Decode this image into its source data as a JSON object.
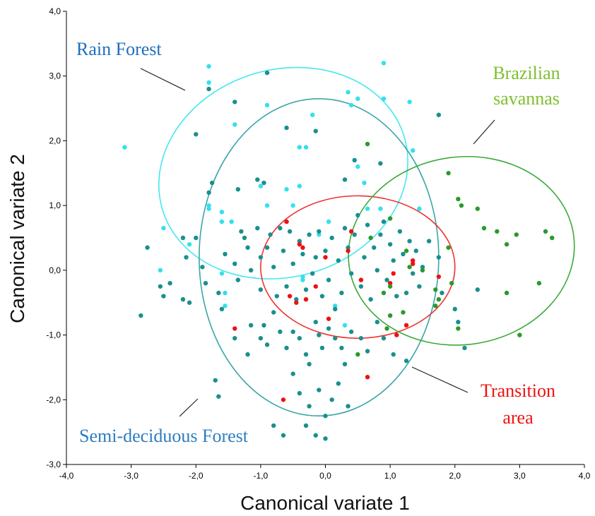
{
  "chart_data": {
    "type": "scatter",
    "xlabel": "Canonical variate 1",
    "ylabel": "Canonical variate 2",
    "xlim": [
      -4.0,
      4.0
    ],
    "ylim": [
      -3.0,
      4.0
    ],
    "xticks": [
      "-4,0",
      "-3,0",
      "-2,0",
      "-1,0",
      "0,0",
      "1,0",
      "2,0",
      "3,0",
      "4,0"
    ],
    "yticks": [
      "4,0",
      "3,0",
      "2,0",
      "1,0",
      "0,0",
      "-1,0",
      "-2,0",
      "-3,0"
    ],
    "grid": false,
    "colors": {
      "rain_forest": "#33e0ee",
      "semi_deciduous": "#1a8f8f",
      "transition": "#ee1111",
      "savannas": "#2a9a2a"
    },
    "ellipses": [
      {
        "group": "rain_forest",
        "cx": -0.65,
        "cy": 1.5,
        "rx": 1.95,
        "ry": 1.6,
        "angle_deg": -17,
        "color": "#44e8f0"
      },
      {
        "group": "semi_deciduous",
        "cx": -0.1,
        "cy": 0.2,
        "rx": 1.85,
        "ry": 2.45,
        "angle_deg": 0,
        "color": "#3aa6a6"
      },
      {
        "group": "transition",
        "cx": 0.5,
        "cy": 0.05,
        "rx": 1.5,
        "ry": 1.1,
        "angle_deg": 0,
        "color": "#ee3333"
      },
      {
        "group": "savannas",
        "cx": 2.1,
        "cy": 0.3,
        "rx": 1.75,
        "ry": 1.45,
        "angle_deg": -8,
        "color": "#3aaa3a"
      }
    ],
    "series": [
      {
        "name": "Rain Forest",
        "color_key": "rain_forest",
        "points": [
          [
            -3.1,
            1.9
          ],
          [
            -1.8,
            3.15
          ],
          [
            -1.8,
            2.9
          ],
          [
            -0.9,
            2.55
          ],
          [
            -1.4,
            2.25
          ],
          [
            -0.4,
            1.9
          ],
          [
            -0.2,
            2.4
          ],
          [
            0.35,
            2.75
          ],
          [
            0.9,
            3.2
          ],
          [
            0.5,
            2.65
          ],
          [
            0.5,
            1.6
          ],
          [
            0.9,
            2.65
          ],
          [
            1.3,
            2.6
          ],
          [
            1.35,
            1.85
          ],
          [
            -1.8,
            1.0
          ],
          [
            -1.8,
            0.95
          ],
          [
            -1.6,
            0.75
          ],
          [
            -1.0,
            1.3
          ],
          [
            -0.6,
            1.25
          ],
          [
            -0.4,
            1.3
          ],
          [
            -0.9,
            1.0
          ],
          [
            -0.5,
            1.0
          ],
          [
            -0.1,
            0.55
          ],
          [
            0.05,
            0.75
          ],
          [
            0.6,
            1.35
          ],
          [
            0.85,
            0.95
          ],
          [
            -2.5,
            0.65
          ],
          [
            -2.55,
            0.0
          ],
          [
            -1.6,
            0.9
          ],
          [
            -1.6,
            -0.05
          ],
          [
            -1.55,
            -0.35
          ],
          [
            -1.55,
            -0.55
          ],
          [
            -0.35,
            -0.15
          ],
          [
            -0.35,
            -0.1
          ],
          [
            0.15,
            -0.55
          ],
          [
            0.3,
            -0.85
          ],
          [
            0.65,
            0.95
          ],
          [
            1.45,
            0.95
          ],
          [
            -2.1,
            0.4
          ],
          [
            -1.45,
            0.75
          ],
          [
            -0.3,
            1.9
          ],
          [
            0.4,
            2.55
          ]
        ]
      },
      {
        "name": "Semi-deciduous Forest",
        "color_key": "semi_deciduous",
        "points": [
          [
            -2.0,
            2.1
          ],
          [
            -1.8,
            2.8
          ],
          [
            -1.4,
            2.6
          ],
          [
            -0.9,
            3.05
          ],
          [
            -0.6,
            2.2
          ],
          [
            -0.15,
            2.15
          ],
          [
            1.75,
            2.4
          ],
          [
            0.85,
            1.65
          ],
          [
            0.3,
            1.4
          ],
          [
            0.45,
            1.7
          ],
          [
            -1.75,
            1.35
          ],
          [
            -1.8,
            1.2
          ],
          [
            -1.35,
            1.25
          ],
          [
            -1.05,
            1.4
          ],
          [
            -0.95,
            1.35
          ],
          [
            -2.2,
            0.5
          ],
          [
            -2.15,
            0.2
          ],
          [
            -2.0,
            0.5
          ],
          [
            -1.9,
            0.05
          ],
          [
            -1.85,
            -0.2
          ],
          [
            -2.5,
            -0.4
          ],
          [
            -2.4,
            -0.2
          ],
          [
            -2.2,
            -0.45
          ],
          [
            -2.1,
            -0.5
          ],
          [
            -2.55,
            -0.25
          ],
          [
            -2.75,
            0.35
          ],
          [
            -2.85,
            -0.7
          ],
          [
            -1.65,
            -0.35
          ],
          [
            -1.6,
            -0.6
          ],
          [
            -1.55,
            0.25
          ],
          [
            -1.4,
            0.1
          ],
          [
            -1.35,
            -0.15
          ],
          [
            -1.3,
            0.6
          ],
          [
            -1.25,
            0.5
          ],
          [
            -1.2,
            0.35
          ],
          [
            -1.15,
            0.0
          ],
          [
            -1.05,
            0.65
          ],
          [
            -1.0,
            -0.3
          ],
          [
            -1.0,
            0.2
          ],
          [
            -0.9,
            0.35
          ],
          [
            -0.85,
            0.55
          ],
          [
            -0.8,
            0.05
          ],
          [
            -0.75,
            -0.4
          ],
          [
            -0.7,
            0.65
          ],
          [
            -0.65,
            0.3
          ],
          [
            -0.6,
            -0.25
          ],
          [
            -0.55,
            0.6
          ],
          [
            -0.5,
            0.1
          ],
          [
            -0.45,
            -0.45
          ],
          [
            -0.4,
            0.45
          ],
          [
            -0.35,
            0.25
          ],
          [
            -0.3,
            -0.3
          ],
          [
            -0.25,
            0.55
          ],
          [
            -0.2,
            -0.05
          ],
          [
            -0.15,
            0.2
          ],
          [
            -0.1,
            0.6
          ],
          [
            -0.05,
            -0.4
          ],
          [
            0.0,
            0.3
          ],
          [
            0.05,
            -0.15
          ],
          [
            0.1,
            0.5
          ],
          [
            0.15,
            -0.6
          ],
          [
            0.2,
            0.15
          ],
          [
            0.25,
            -0.35
          ],
          [
            0.3,
            0.65
          ],
          [
            0.35,
            0.35
          ],
          [
            0.4,
            -0.05
          ],
          [
            0.45,
            0.55
          ],
          [
            0.5,
            0.85
          ],
          [
            0.55,
            -0.25
          ],
          [
            0.6,
            0.2
          ],
          [
            0.65,
            0.7
          ],
          [
            0.7,
            -0.45
          ],
          [
            0.75,
            0.35
          ],
          [
            0.8,
            0.0
          ],
          [
            0.85,
            0.55
          ],
          [
            0.9,
            0.75
          ],
          [
            0.95,
            -0.15
          ],
          [
            1.0,
            0.4
          ],
          [
            1.05,
            0.15
          ],
          [
            1.1,
            -0.4
          ],
          [
            1.15,
            0.6
          ],
          [
            1.2,
            0.25
          ],
          [
            1.25,
            -0.35
          ],
          [
            1.3,
            0.45
          ],
          [
            1.35,
            -0.05
          ],
          [
            1.4,
            0.3
          ],
          [
            1.45,
            -0.25
          ],
          [
            1.5,
            0.05
          ],
          [
            1.6,
            0.45
          ],
          [
            1.75,
            0.2
          ],
          [
            1.8,
            -0.35
          ],
          [
            2.0,
            -0.6
          ],
          [
            2.05,
            -0.8
          ],
          [
            2.15,
            -1.2
          ],
          [
            2.35,
            -0.3
          ],
          [
            -1.7,
            -1.7
          ],
          [
            -1.65,
            -1.95
          ],
          [
            -1.0,
            -1.05
          ],
          [
            -0.95,
            -0.85
          ],
          [
            -0.9,
            -1.15
          ],
          [
            -0.8,
            -0.65
          ],
          [
            -0.7,
            -0.95
          ],
          [
            -0.6,
            -1.2
          ],
          [
            -0.5,
            -0.95
          ],
          [
            -0.4,
            -1.05
          ],
          [
            -0.3,
            -1.3
          ],
          [
            -0.25,
            -1.45
          ],
          [
            -0.15,
            -0.8
          ],
          [
            -0.1,
            -1.0
          ],
          [
            -0.05,
            -1.2
          ],
          [
            0.05,
            -0.9
          ],
          [
            0.15,
            -1.05
          ],
          [
            0.25,
            -1.2
          ],
          [
            0.3,
            -1.45
          ],
          [
            0.4,
            -0.95
          ],
          [
            0.55,
            -1.05
          ],
          [
            0.65,
            -1.25
          ],
          [
            0.8,
            -0.8
          ],
          [
            0.9,
            -1.05
          ],
          [
            1.05,
            -1.3
          ],
          [
            1.25,
            -1.4
          ],
          [
            -0.5,
            -1.6
          ],
          [
            -0.4,
            -1.9
          ],
          [
            -0.25,
            -2.1
          ],
          [
            -0.1,
            -1.85
          ],
          [
            0.0,
            -2.25
          ],
          [
            0.1,
            -2.0
          ],
          [
            0.2,
            -1.75
          ],
          [
            0.35,
            -2.1
          ],
          [
            -0.8,
            -2.4
          ],
          [
            -0.3,
            -2.4
          ],
          [
            -0.15,
            -2.55
          ],
          [
            0.0,
            -2.6
          ],
          [
            -0.65,
            -2.55
          ],
          [
            -1.4,
            -1.05
          ],
          [
            -1.2,
            -1.3
          ],
          [
            -1.15,
            -0.85
          ]
        ]
      },
      {
        "name": "Transition area",
        "color_key": "transition",
        "points": [
          [
            -0.6,
            0.75
          ],
          [
            -0.4,
            0.4
          ],
          [
            -0.35,
            0.35
          ],
          [
            0.0,
            0.2
          ],
          [
            0.35,
            0.3
          ],
          [
            0.4,
            0.6
          ],
          [
            0.55,
            -0.15
          ],
          [
            -0.55,
            -0.4
          ],
          [
            -0.45,
            -0.5
          ],
          [
            -0.15,
            -0.25
          ],
          [
            0.05,
            -0.75
          ],
          [
            -1.4,
            -0.9
          ],
          [
            -0.65,
            -2.0
          ],
          [
            0.65,
            -1.65
          ],
          [
            1.0,
            -0.2
          ],
          [
            1.05,
            -0.05
          ],
          [
            1.25,
            -0.85
          ],
          [
            1.35,
            0.1
          ],
          [
            1.35,
            0.15
          ],
          [
            1.1,
            -1.0
          ],
          [
            1.75,
            -0.1
          ],
          [
            -0.3,
            -0.45
          ]
        ]
      },
      {
        "name": "Brazilian savannas",
        "color_key": "savannas",
        "points": [
          [
            0.65,
            1.95
          ],
          [
            1.9,
            1.5
          ],
          [
            2.05,
            1.1
          ],
          [
            2.1,
            1.0
          ],
          [
            2.35,
            0.95
          ],
          [
            2.45,
            0.65
          ],
          [
            2.65,
            0.6
          ],
          [
            2.95,
            0.55
          ],
          [
            2.8,
            0.4
          ],
          [
            3.4,
            0.6
          ],
          [
            3.5,
            0.5
          ],
          [
            1.0,
            0.8
          ],
          [
            0.7,
            0.5
          ],
          [
            1.25,
            0.3
          ],
          [
            1.3,
            0.05
          ],
          [
            1.5,
            0.0
          ],
          [
            1.7,
            -0.3
          ],
          [
            1.75,
            -0.45
          ],
          [
            1.95,
            -0.2
          ],
          [
            1.0,
            -0.25
          ],
          [
            0.9,
            -0.35
          ],
          [
            1.0,
            -0.7
          ],
          [
            0.95,
            -0.9
          ],
          [
            1.2,
            -0.65
          ],
          [
            2.05,
            -0.9
          ],
          [
            2.8,
            -0.35
          ],
          [
            3.3,
            -0.2
          ],
          [
            3.0,
            -1.0
          ],
          [
            0.5,
            -1.3
          ],
          [
            1.9,
            0.35
          ],
          [
            1.7,
            -0.55
          ]
        ]
      }
    ],
    "annotations": [
      {
        "text": "Rain Forest",
        "color_key": "rain_forest_label"
      },
      {
        "text": "Brazilian",
        "color_key": "savannas_label"
      },
      {
        "text": "savannas",
        "color_key": "savannas_label"
      },
      {
        "text": "Semi-deciduous Forest",
        "color_key": "semi_label"
      },
      {
        "text": "Transition",
        "color_key": "transition_label"
      },
      {
        "text": "area",
        "color_key": "transition_label"
      }
    ],
    "label_colors": {
      "rain_forest_label": "#1e6fbf",
      "savannas_label": "#7fbf2e",
      "semi_label": "#2e7dc0",
      "transition_label": "#ee1111"
    }
  }
}
